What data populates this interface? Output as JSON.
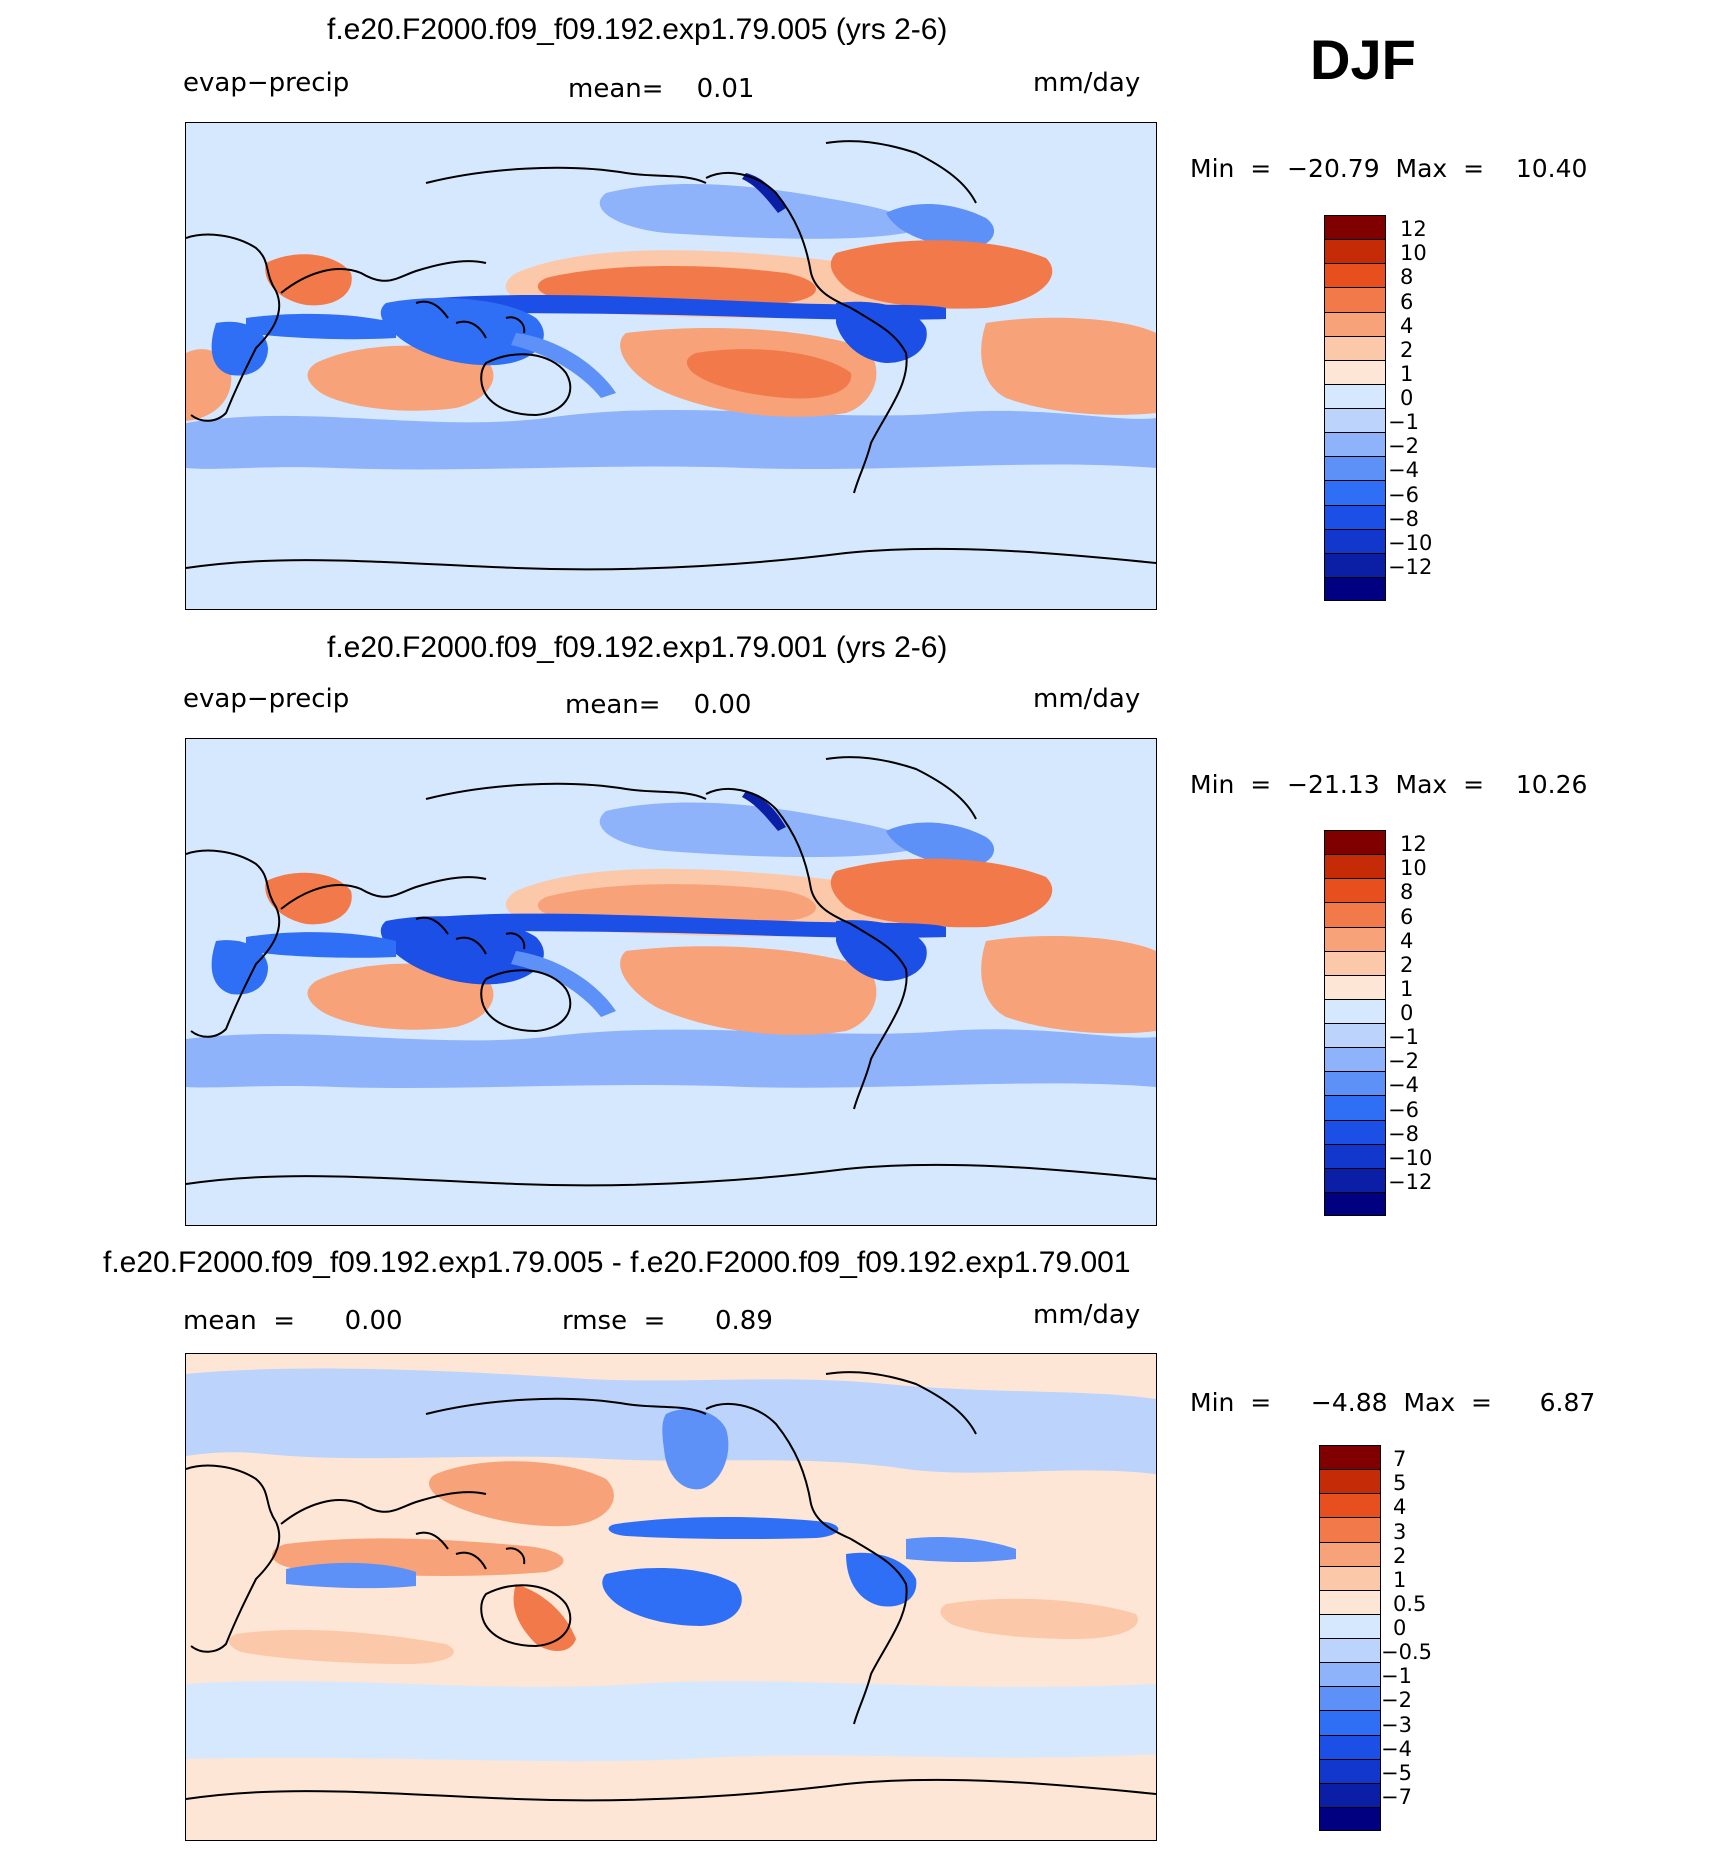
{
  "season": "DJF",
  "colors": {
    "field_scale": [
      "#000080",
      "#0b1fa6",
      "#1237cc",
      "#1c4fe6",
      "#2f6ff5",
      "#5d91f7",
      "#8fb3fa",
      "#bcd3fb",
      "#d6e8fd",
      "#fde6d5",
      "#fbc8aa",
      "#f7a278",
      "#f27a4a",
      "#e84f1f",
      "#c42b06",
      "#800000"
    ],
    "diff_scale": [
      "#000080",
      "#0b1fa6",
      "#1237cc",
      "#1c4fe6",
      "#2f6ff5",
      "#5d91f7",
      "#8fb3fa",
      "#bcd3fb",
      "#d6e8fd",
      "#fde6d5",
      "#fbc8aa",
      "#f7a278",
      "#f27a4a",
      "#e84f1f",
      "#c42b06",
      "#800000"
    ]
  },
  "panels": [
    {
      "title": "f.e20.F2000.f09_f09.192.exp1.79.005 (yrs 2-6)",
      "left_label": "evap−precip",
      "center_label": "mean=    0.01",
      "right_label": "mm/day",
      "minmax": "Min  =  −20.79  Max  =    10.40"
    },
    {
      "title": "f.e20.F2000.f09_f09.192.exp1.79.001 (yrs 2-6)",
      "left_label": "evap−precip",
      "center_label": "mean=    0.00",
      "right_label": "mm/day",
      "minmax": "Min  =  −21.13  Max  =    10.26"
    },
    {
      "title": "f.e20.F2000.f09_f09.192.exp1.79.005 - f.e20.F2000.f09_f09.192.exp1.79.001",
      "left_label": "mean  =      0.00",
      "center_label": "rmse  =      0.89",
      "right_label": "mm/day",
      "minmax": "Min  =     −4.88  Max  =      6.87"
    }
  ],
  "chart_data": [
    {
      "type": "heatmap",
      "title": "f.e20.F2000.f09_f09.192.exp1.79.005 (yrs 2-6)",
      "variable": "evap−precip",
      "units": "mm/day",
      "mean": 0.01,
      "min": -20.79,
      "max": 10.4,
      "colorbar_levels": [
        "12",
        "10",
        "8",
        "6",
        "4",
        "2",
        "1",
        "0",
        "−1",
        "−2",
        "−4",
        "−6",
        "−8",
        "−10",
        "−12"
      ]
    },
    {
      "type": "heatmap",
      "title": "f.e20.F2000.f09_f09.192.exp1.79.001 (yrs 2-6)",
      "variable": "evap−precip",
      "units": "mm/day",
      "mean": 0.0,
      "min": -21.13,
      "max": 10.26,
      "colorbar_levels": [
        "12",
        "10",
        "8",
        "6",
        "4",
        "2",
        "1",
        "0",
        "−1",
        "−2",
        "−4",
        "−6",
        "−8",
        "−10",
        "−12"
      ]
    },
    {
      "type": "heatmap",
      "title": "f.e20.F2000.f09_f09.192.exp1.79.005 - f.e20.F2000.f09_f09.192.exp1.79.001",
      "units": "mm/day",
      "mean": 0.0,
      "rmse": 0.89,
      "min": -4.88,
      "max": 6.87,
      "colorbar_levels": [
        "7",
        "5",
        "4",
        "3",
        "2",
        "1",
        "0.5",
        "0",
        "−0.5",
        "−1",
        "−2",
        "−3",
        "−4",
        "−5",
        "−7"
      ]
    }
  ]
}
